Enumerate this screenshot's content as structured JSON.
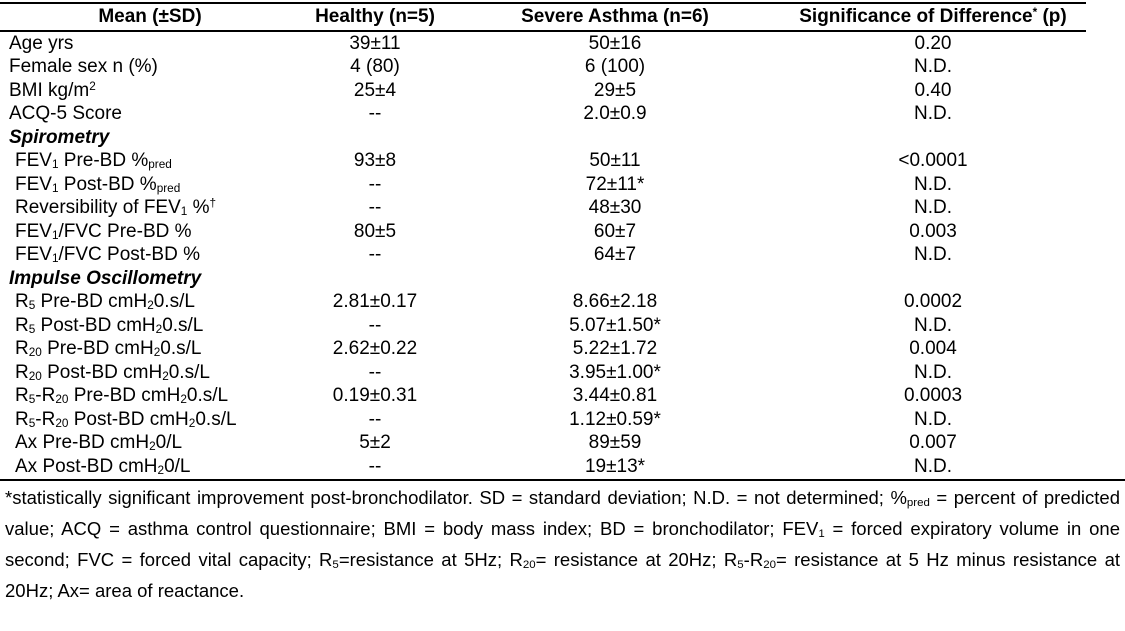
{
  "colors": {
    "text": "#000000",
    "background": "#ffffff",
    "rule": "#000000"
  },
  "table": {
    "columns": [
      {
        "label": "Mean (±SD)"
      },
      {
        "label": "Healthy (n=5)"
      },
      {
        "label": "Severe Asthma (n=6)"
      },
      {
        "label": "Significance of Difference^*^ (p)"
      }
    ],
    "rows": [
      {
        "type": "data",
        "indent": false,
        "label": "Age yrs",
        "healthy": "39±11",
        "severe": "50±16",
        "p": "0.20"
      },
      {
        "type": "data",
        "indent": false,
        "label": "Female sex n (%)",
        "healthy": "4 (80)",
        "severe": "6 (100)",
        "p": "N.D."
      },
      {
        "type": "data",
        "indent": false,
        "label": "BMI kg/m^2^",
        "healthy": "25±4",
        "severe": "29±5",
        "p": "0.40"
      },
      {
        "type": "data",
        "indent": false,
        "label": "ACQ-5 Score",
        "healthy": "--",
        "severe": "2.0±0.9",
        "p": "N.D."
      },
      {
        "type": "section",
        "indent": false,
        "label": "Spirometry",
        "healthy": "",
        "severe": "",
        "p": ""
      },
      {
        "type": "data",
        "indent": true,
        "label": "FEV~1~ Pre-BD %~pred~",
        "healthy": "93±8",
        "severe": "50±11",
        "p": "<0.0001"
      },
      {
        "type": "data",
        "indent": true,
        "label": "FEV~1~ Post-BD %~pred~",
        "healthy": "--",
        "severe": "72±11*",
        "p": "N.D."
      },
      {
        "type": "data",
        "indent": true,
        "label": "Reversibility of FEV~1~ %^†^",
        "healthy": "--",
        "severe": "48±30",
        "p": "N.D."
      },
      {
        "type": "data",
        "indent": true,
        "label": "FEV~1~/FVC Pre-BD %",
        "healthy": "80±5",
        "severe": "60±7",
        "p": "0.003"
      },
      {
        "type": "data",
        "indent": true,
        "label": "FEV~1~/FVC Post-BD %",
        "healthy": "--",
        "severe": "64±7",
        "p": "N.D."
      },
      {
        "type": "section",
        "indent": false,
        "label": "Impulse Oscillometry",
        "healthy": "",
        "severe": "",
        "p": ""
      },
      {
        "type": "data",
        "indent": true,
        "label": "R~5~ Pre-BD cmH~2~0.s/L",
        "healthy": "2.81±0.17",
        "severe": "8.66±2.18",
        "p": "0.0002"
      },
      {
        "type": "data",
        "indent": true,
        "label": "R~5~ Post-BD cmH~2~0.s/L",
        "healthy": "--",
        "severe": "5.07±1.50*",
        "p": "N.D."
      },
      {
        "type": "data",
        "indent": true,
        "label": "R~20~ Pre-BD cmH~2~0.s/L",
        "healthy": "2.62±0.22",
        "severe": "5.22±1.72",
        "p": "0.004"
      },
      {
        "type": "data",
        "indent": true,
        "label": "R~20~ Post-BD cmH~2~0.s/L",
        "healthy": "--",
        "severe": "3.95±1.00*",
        "p": "N.D."
      },
      {
        "type": "data",
        "indent": true,
        "label": "R~5~-R~20~ Pre-BD cmH~2~0.s/L",
        "healthy": "0.19±0.31",
        "severe": "3.44±0.81",
        "p": "0.0003"
      },
      {
        "type": "data",
        "indent": true,
        "label": "R~5~-R~20~ Post-BD cmH~2~0.s/L",
        "healthy": "--",
        "severe": "1.12±0.59*",
        "p": "N.D."
      },
      {
        "type": "data",
        "indent": true,
        "label": "Ax Pre-BD cmH~2~0/L",
        "healthy": "5±2",
        "severe": "89±59",
        "p": "0.007"
      },
      {
        "type": "data",
        "indent": true,
        "label": "Ax Post-BD cmH~2~0/L",
        "healthy": "--",
        "severe": "19±13*",
        "p": "N.D."
      }
    ]
  },
  "footnote": "*statistically significant improvement post-bronchodilator.  SD = standard deviation; N.D. = not determined; %~pred~ = percent of predicted value; ACQ = asthma control questionnaire; BMI = body mass index; BD = bronchodilator;  FEV~1~ = forced expiratory volume in one second; FVC = forced vital capacity; R~5~=resistance at 5Hz; R~20~= resistance at 20Hz; R~5~-R~20~= resistance at 5 Hz minus resistance at 20Hz; Ax= area of reactance."
}
